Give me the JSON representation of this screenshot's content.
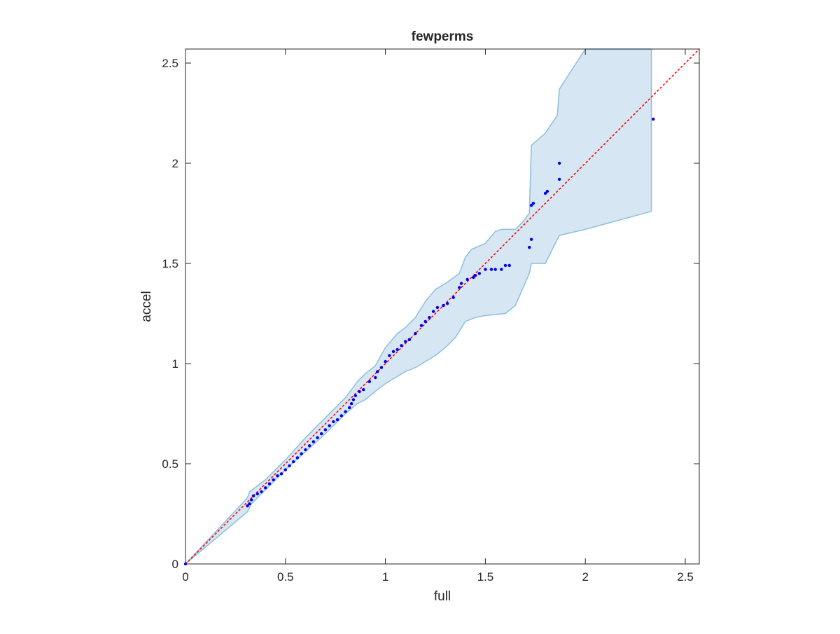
{
  "chart_data": {
    "type": "scatter",
    "title": "fewperms",
    "xlabel": "full",
    "ylabel": "accel",
    "xlim": [
      0,
      2.57
    ],
    "ylim": [
      0,
      2.57
    ],
    "xticks": [
      0,
      0.5,
      1,
      1.5,
      2,
      2.5
    ],
    "yticks": [
      0,
      0.5,
      1,
      1.5,
      2,
      2.5
    ],
    "xtick_labels": [
      "0",
      "0.5",
      "1",
      "1.5",
      "2",
      "2.5"
    ],
    "ytick_labels": [
      "0",
      "0.5",
      "1",
      "1.5",
      "2",
      "2.5"
    ],
    "grid": false,
    "box": true,
    "reference_line": {
      "style": "dotted",
      "color": "#ff0000",
      "from": [
        0,
        0
      ],
      "to": [
        2.57,
        2.57
      ]
    },
    "band_color": "#d6e6f2",
    "band_edge_color": "#8cbfdd",
    "point_color": "#0000ee",
    "band_upper": [
      [
        0,
        0
      ],
      [
        0.31,
        0.33
      ],
      [
        0.32,
        0.36
      ],
      [
        0.4,
        0.42
      ],
      [
        0.5,
        0.52
      ],
      [
        0.6,
        0.63
      ],
      [
        0.7,
        0.73
      ],
      [
        0.8,
        0.83
      ],
      [
        0.86,
        0.91
      ],
      [
        0.9,
        0.95
      ],
      [
        0.95,
        0.99
      ],
      [
        1.0,
        1.08
      ],
      [
        1.06,
        1.15
      ],
      [
        1.1,
        1.18
      ],
      [
        1.15,
        1.23
      ],
      [
        1.2,
        1.31
      ],
      [
        1.25,
        1.37
      ],
      [
        1.3,
        1.4
      ],
      [
        1.37,
        1.45
      ],
      [
        1.4,
        1.53
      ],
      [
        1.43,
        1.57
      ],
      [
        1.5,
        1.6
      ],
      [
        1.55,
        1.66
      ],
      [
        1.58,
        1.67
      ],
      [
        1.65,
        1.67
      ],
      [
        1.68,
        1.7
      ],
      [
        1.72,
        1.75
      ],
      [
        1.73,
        2.09
      ],
      [
        1.8,
        2.15
      ],
      [
        1.86,
        2.24
      ],
      [
        1.87,
        2.37
      ],
      [
        2.0,
        2.57
      ],
      [
        2.33,
        2.57
      ]
    ],
    "band_lower": [
      [
        2.33,
        1.76
      ],
      [
        2.0,
        1.67
      ],
      [
        1.87,
        1.64
      ],
      [
        1.86,
        1.62
      ],
      [
        1.8,
        1.5
      ],
      [
        1.73,
        1.5
      ],
      [
        1.72,
        1.45
      ],
      [
        1.65,
        1.29
      ],
      [
        1.6,
        1.25
      ],
      [
        1.5,
        1.24
      ],
      [
        1.45,
        1.23
      ],
      [
        1.4,
        1.21
      ],
      [
        1.35,
        1.13
      ],
      [
        1.3,
        1.08
      ],
      [
        1.25,
        1.04
      ],
      [
        1.2,
        1.01
      ],
      [
        1.15,
        0.98
      ],
      [
        1.1,
        0.96
      ],
      [
        1.05,
        0.93
      ],
      [
        1.0,
        0.9
      ],
      [
        0.96,
        0.87
      ],
      [
        0.9,
        0.82
      ],
      [
        0.86,
        0.8
      ],
      [
        0.8,
        0.75
      ],
      [
        0.7,
        0.65
      ],
      [
        0.6,
        0.56
      ],
      [
        0.5,
        0.47
      ],
      [
        0.4,
        0.37
      ],
      [
        0.33,
        0.3
      ],
      [
        0.32,
        0.28
      ],
      [
        0.31,
        0.26
      ],
      [
        0,
        0
      ]
    ],
    "points": [
      [
        0,
        0
      ],
      [
        0.31,
        0.29
      ],
      [
        0.32,
        0.3
      ],
      [
        0.33,
        0.32
      ],
      [
        0.34,
        0.34
      ],
      [
        0.36,
        0.35
      ],
      [
        0.38,
        0.36
      ],
      [
        0.4,
        0.38
      ],
      [
        0.42,
        0.4
      ],
      [
        0.44,
        0.42
      ],
      [
        0.46,
        0.44
      ],
      [
        0.48,
        0.45
      ],
      [
        0.5,
        0.47
      ],
      [
        0.52,
        0.49
      ],
      [
        0.54,
        0.51
      ],
      [
        0.56,
        0.53
      ],
      [
        0.58,
        0.55
      ],
      [
        0.6,
        0.57
      ],
      [
        0.62,
        0.59
      ],
      [
        0.64,
        0.61
      ],
      [
        0.66,
        0.63
      ],
      [
        0.68,
        0.65
      ],
      [
        0.7,
        0.67
      ],
      [
        0.72,
        0.69
      ],
      [
        0.74,
        0.71
      ],
      [
        0.76,
        0.72
      ],
      [
        0.78,
        0.74
      ],
      [
        0.8,
        0.76
      ],
      [
        0.82,
        0.78
      ],
      [
        0.83,
        0.8
      ],
      [
        0.84,
        0.82
      ],
      [
        0.85,
        0.84
      ],
      [
        0.87,
        0.86
      ],
      [
        0.89,
        0.87
      ],
      [
        0.92,
        0.91
      ],
      [
        0.95,
        0.93
      ],
      [
        0.96,
        0.96
      ],
      [
        0.98,
        0.98
      ],
      [
        1.0,
        1.01
      ],
      [
        1.02,
        1.04
      ],
      [
        1.04,
        1.06
      ],
      [
        1.06,
        1.07
      ],
      [
        1.08,
        1.09
      ],
      [
        1.1,
        1.11
      ],
      [
        1.12,
        1.12
      ],
      [
        1.15,
        1.15
      ],
      [
        1.18,
        1.19
      ],
      [
        1.2,
        1.21
      ],
      [
        1.22,
        1.23
      ],
      [
        1.24,
        1.26
      ],
      [
        1.26,
        1.28
      ],
      [
        1.29,
        1.29
      ],
      [
        1.31,
        1.3
      ],
      [
        1.34,
        1.33
      ],
      [
        1.37,
        1.38
      ],
      [
        1.38,
        1.4
      ],
      [
        1.41,
        1.42
      ],
      [
        1.44,
        1.43
      ],
      [
        1.45,
        1.44
      ],
      [
        1.47,
        1.45
      ],
      [
        1.5,
        1.47
      ],
      [
        1.53,
        1.47
      ],
      [
        1.55,
        1.47
      ],
      [
        1.58,
        1.47
      ],
      [
        1.6,
        1.49
      ],
      [
        1.62,
        1.49
      ],
      [
        1.72,
        1.58
      ],
      [
        1.73,
        1.62
      ],
      [
        1.73,
        1.79
      ],
      [
        1.74,
        1.8
      ],
      [
        1.8,
        1.85
      ],
      [
        1.81,
        1.86
      ],
      [
        1.87,
        1.92
      ],
      [
        1.87,
        2.0
      ],
      [
        2.34,
        2.22
      ]
    ]
  }
}
